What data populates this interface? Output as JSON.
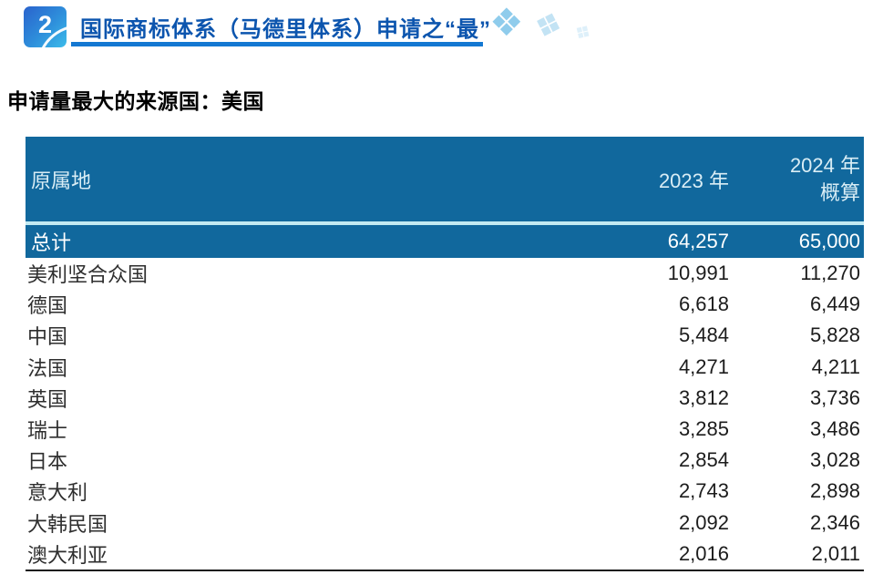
{
  "header": {
    "section_number": "2",
    "title": "国际商标体系（马德里体系）申请之“最”",
    "decor_icon_glyph": "❖",
    "colors": {
      "badge_gradient_start": "#2a63cd",
      "badge_gradient_end": "#3cbcea",
      "title_text": "#0c55ae",
      "underline": "#1478d2",
      "decor_blue": "#8fccec"
    }
  },
  "subtitle": "申请量最大的来源国：美国",
  "table": {
    "colors": {
      "header_bg": "#11689d",
      "header_text": "#d9edf5",
      "separator": "#c3eaf2",
      "total_text": "#ffffff",
      "body_text": "#2e2e2e",
      "bottom_border": "#1a1a1a"
    },
    "columns": {
      "origin_label": "原属地",
      "year2023_label": "2023 年",
      "year2024_label_line1": "2024 年",
      "year2024_label_line2": "概算"
    },
    "total_row": {
      "origin": "总计",
      "y2023": "64,257",
      "y2024": "65,000"
    },
    "rows": [
      {
        "origin": "美利坚合众国",
        "y2023": "10,991",
        "y2024": "11,270"
      },
      {
        "origin": "德国",
        "y2023": "6,618",
        "y2024": "6,449"
      },
      {
        "origin": "中国",
        "y2023": "5,484",
        "y2024": "5,828"
      },
      {
        "origin": "法国",
        "y2023": "4,271",
        "y2024": "4,211"
      },
      {
        "origin": "英国",
        "y2023": "3,812",
        "y2024": "3,736"
      },
      {
        "origin": "瑞士",
        "y2023": "3,285",
        "y2024": "3,486"
      },
      {
        "origin": "日本",
        "y2023": "2,854",
        "y2024": "3,028"
      },
      {
        "origin": "意大利",
        "y2023": "2,743",
        "y2024": "2,898"
      },
      {
        "origin": "大韩民国",
        "y2023": "2,092",
        "y2024": "2,346"
      },
      {
        "origin": "澳大利亚",
        "y2023": "2,016",
        "y2024": "2,011"
      }
    ]
  }
}
